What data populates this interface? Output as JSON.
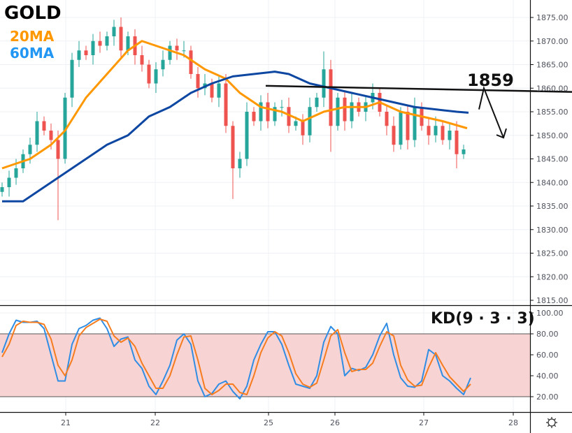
{
  "labels": {
    "symbol": "GOLD",
    "ma20": "20MA",
    "ma60": "60MA",
    "indicator": "KD(9 · 3 · 3)",
    "annotation": "1859"
  },
  "colors": {
    "up": "#26a69a",
    "down": "#ef5350",
    "ma20": "#ff9800",
    "ma60": "#0d47a1",
    "k": "#2f8de4",
    "d": "#f57c1f",
    "band": "#f8d3d3"
  },
  "settings_icon": "gear-icon",
  "chart_data": [
    {
      "type": "candlestick",
      "title": "GOLD",
      "ylim": [
        1812,
        1879
      ],
      "yticks": [
        "1875.00",
        "1870.00",
        "1865.00",
        "1860.00",
        "1855.00",
        "1850.00",
        "1845.00",
        "1840.00",
        "1835.00",
        "1830.00",
        "1825.00",
        "1820.00",
        "1815.00"
      ],
      "ytick_values": [
        1875,
        1870,
        1865,
        1860,
        1855,
        1850,
        1845,
        1840,
        1835,
        1830,
        1825,
        1820,
        1815
      ],
      "xticks": [
        {
          "label": "21",
          "index": 9.1
        },
        {
          "label": "22",
          "index": 21.9
        },
        {
          "label": "25",
          "index": 38.1
        },
        {
          "label": "26",
          "index": 47.6
        },
        {
          "label": "27",
          "index": 60.3
        },
        {
          "label": "28",
          "index": 73.1
        }
      ],
      "first_open": 1838,
      "closes": [
        1839,
        1841,
        1843,
        1846,
        1848,
        1853,
        1851,
        1849,
        1845,
        1858,
        1866,
        1868,
        1867,
        1870,
        1869,
        1871,
        1873,
        1868,
        1871,
        1867,
        1865,
        1861,
        1864,
        1866,
        1869,
        1868,
        1868,
        1863,
        1860,
        1861,
        1858,
        1861,
        1852,
        1843,
        1845,
        1855,
        1853,
        1857,
        1853,
        1856,
        1856,
        1852,
        1853,
        1850,
        1856,
        1858,
        1864,
        1852,
        1858,
        1853,
        1857,
        1855,
        1857,
        1859,
        1855,
        1852,
        1848,
        1855,
        1849,
        1856,
        1852,
        1850,
        1852,
        1849,
        1851,
        1846,
        1847
      ],
      "long_wicks": [
        {
          "index": 8,
          "low": 1832
        },
        {
          "index": 33,
          "low": 1836.5
        },
        {
          "index": 46,
          "high": 1867.8
        },
        {
          "index": 47,
          "low": 1846.5
        },
        {
          "index": 65,
          "low": 1843
        }
      ],
      "series": [
        {
          "name": "20MA",
          "points": [
            [
              0,
              1843
            ],
            [
              4,
              1845
            ],
            [
              7,
              1848
            ],
            [
              9,
              1851
            ],
            [
              12,
              1858
            ],
            [
              15,
              1863
            ],
            [
              18,
              1868
            ],
            [
              20,
              1870
            ],
            [
              23,
              1868.5
            ],
            [
              26,
              1867
            ],
            [
              29,
              1864
            ],
            [
              32,
              1862
            ],
            [
              34,
              1859
            ],
            [
              37,
              1856
            ],
            [
              40,
              1855
            ],
            [
              43,
              1853
            ],
            [
              46,
              1855
            ],
            [
              49,
              1856
            ],
            [
              52,
              1856
            ],
            [
              54,
              1857
            ],
            [
              57,
              1855
            ],
            [
              60,
              1854
            ],
            [
              63,
              1853
            ],
            [
              66.5,
              1851.5
            ]
          ]
        },
        {
          "name": "60MA",
          "points": [
            [
              0,
              1836
            ],
            [
              3,
              1836
            ],
            [
              6,
              1839
            ],
            [
              9,
              1842
            ],
            [
              12,
              1845
            ],
            [
              15,
              1848
            ],
            [
              18,
              1850
            ],
            [
              21,
              1854
            ],
            [
              24,
              1856
            ],
            [
              27,
              1859
            ],
            [
              30,
              1861
            ],
            [
              33,
              1862.5
            ],
            [
              36,
              1863
            ],
            [
              39,
              1863.5
            ],
            [
              41,
              1863
            ],
            [
              44,
              1861
            ],
            [
              47,
              1860
            ],
            [
              50,
              1859
            ],
            [
              53,
              1858
            ],
            [
              56,
              1857
            ],
            [
              59,
              1856
            ],
            [
              62,
              1855.5
            ],
            [
              65,
              1855
            ],
            [
              66.7,
              1854.8
            ]
          ]
        }
      ],
      "trendline": [
        [
          37.7,
          1860.5
        ],
        [
          81.5,
          1859.2
        ]
      ],
      "arrow": [
        [
          68.2,
          1855.5
        ],
        [
          68.9,
          1860
        ],
        [
          71.7,
          1849.5
        ]
      ]
    },
    {
      "type": "line",
      "title": "KD(9 · 3 · 3)",
      "ylim": [
        0,
        105
      ],
      "yticks": [
        "100.00",
        "80.00",
        "60.00",
        "40.00",
        "20.00"
      ],
      "ytick_values": [
        100,
        80,
        60,
        40,
        20
      ],
      "band": [
        20,
        80
      ],
      "series": [
        {
          "name": "K",
          "values": [
            62,
            80,
            93,
            91,
            91,
            92,
            85,
            60,
            35,
            35,
            70,
            85,
            88,
            93,
            95,
            85,
            68,
            75,
            77,
            55,
            47,
            30,
            22,
            35,
            50,
            74,
            80,
            70,
            35,
            20,
            23,
            32,
            35,
            25,
            18,
            30,
            55,
            70,
            82,
            82,
            70,
            50,
            32,
            30,
            28,
            40,
            72,
            87,
            80,
            40,
            47,
            45,
            48,
            60,
            78,
            90,
            60,
            38,
            30,
            29,
            35,
            65,
            60,
            40,
            35,
            28,
            22,
            38
          ]
        },
        {
          "name": "D",
          "values": [
            58,
            70,
            88,
            92,
            91,
            91,
            89,
            75,
            50,
            40,
            55,
            78,
            86,
            90,
            94,
            92,
            78,
            72,
            76,
            68,
            52,
            40,
            28,
            28,
            40,
            60,
            77,
            78,
            55,
            28,
            22,
            26,
            32,
            32,
            24,
            22,
            40,
            62,
            76,
            82,
            78,
            62,
            42,
            32,
            29,
            33,
            55,
            78,
            84,
            62,
            44,
            46,
            46,
            52,
            68,
            82,
            78,
            50,
            36,
            30,
            31,
            48,
            62,
            50,
            39,
            32,
            25,
            32
          ]
        }
      ]
    }
  ]
}
